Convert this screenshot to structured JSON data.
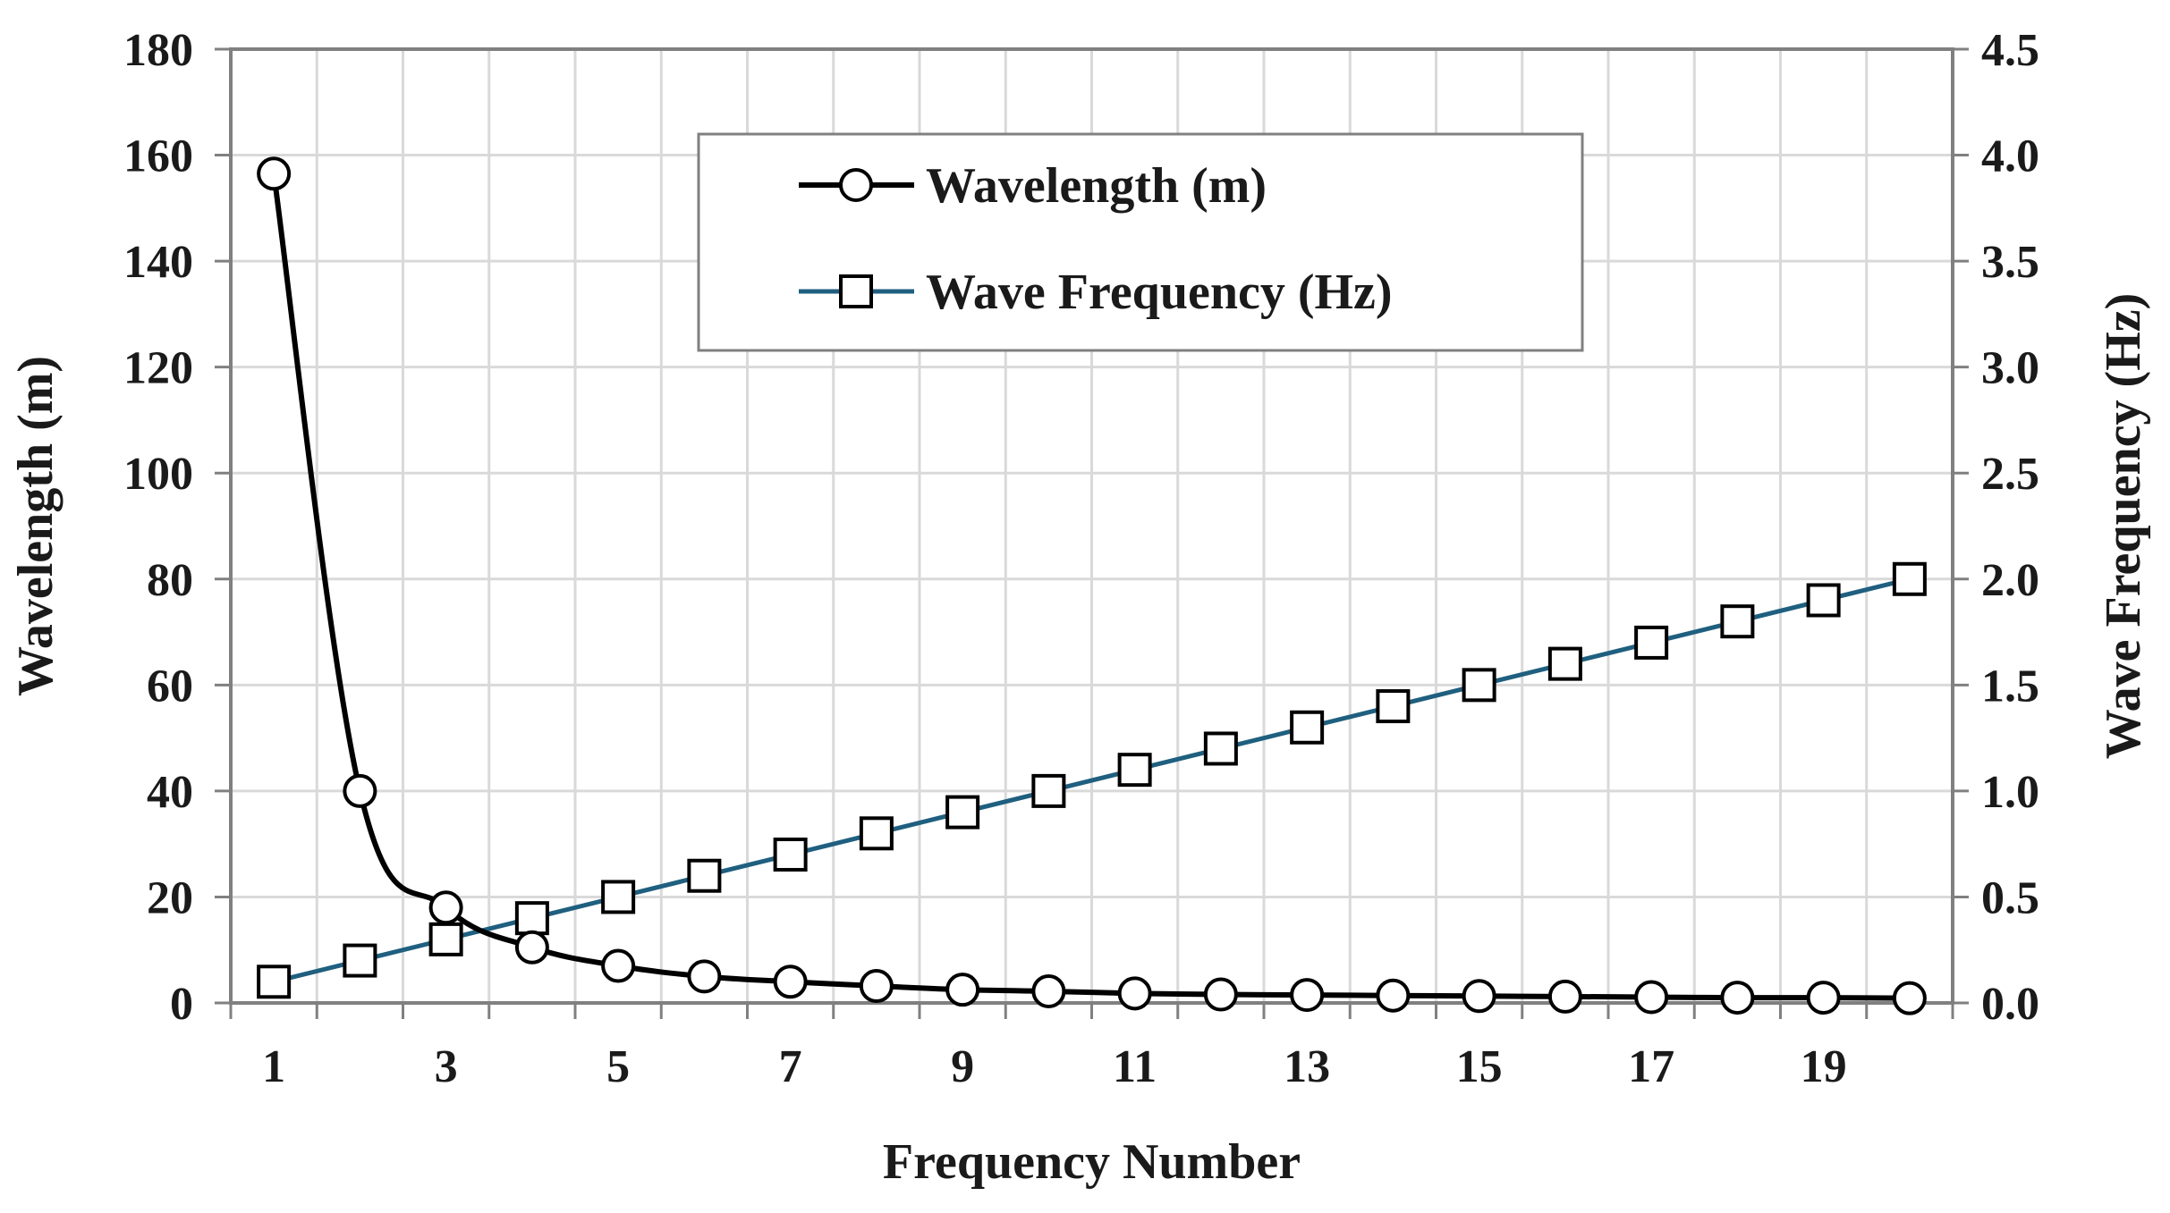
{
  "chart_data": {
    "type": "line",
    "title": "",
    "xlabel": "Frequency Number",
    "ylabel": "Wavelength (m)",
    "y2label": "Wave Frequency (Hz)",
    "x": [
      1,
      2,
      3,
      4,
      5,
      6,
      7,
      8,
      9,
      10,
      11,
      12,
      13,
      14,
      15,
      16,
      17,
      18,
      19,
      20
    ],
    "x_ticks": [
      "1",
      "3",
      "5",
      "7",
      "9",
      "11",
      "13",
      "15",
      "17",
      "19"
    ],
    "ylim": [
      0,
      180
    ],
    "y_ticks": [
      "0",
      "20",
      "40",
      "60",
      "80",
      "100",
      "120",
      "140",
      "160",
      "180"
    ],
    "y2lim": [
      0,
      4.5
    ],
    "y2_ticks": [
      "0.0",
      "0.5",
      "1.0",
      "1.5",
      "2.0",
      "2.5",
      "3.0",
      "3.5",
      "4.0",
      "4.5"
    ],
    "grid": true,
    "legend_position": "top-center",
    "series": [
      {
        "name": "Wavelength (m)",
        "axis": "left",
        "marker": "circle",
        "color": "#000000",
        "values": [
          156.5,
          40.0,
          18.0,
          10.5,
          7.0,
          5.0,
          4.0,
          3.2,
          2.5,
          2.2,
          1.8,
          1.6,
          1.5,
          1.4,
          1.3,
          1.2,
          1.1,
          1.0,
          1.0,
          0.9
        ]
      },
      {
        "name": "Wave Frequency (Hz)",
        "axis": "right",
        "marker": "square",
        "color": "#1f5f7f",
        "values": [
          0.1,
          0.2,
          0.3,
          0.4,
          0.5,
          0.6,
          0.7,
          0.8,
          0.9,
          1.0,
          1.1,
          1.2,
          1.3,
          1.4,
          1.5,
          1.6,
          1.7,
          1.8,
          1.9,
          2.0
        ]
      }
    ]
  }
}
